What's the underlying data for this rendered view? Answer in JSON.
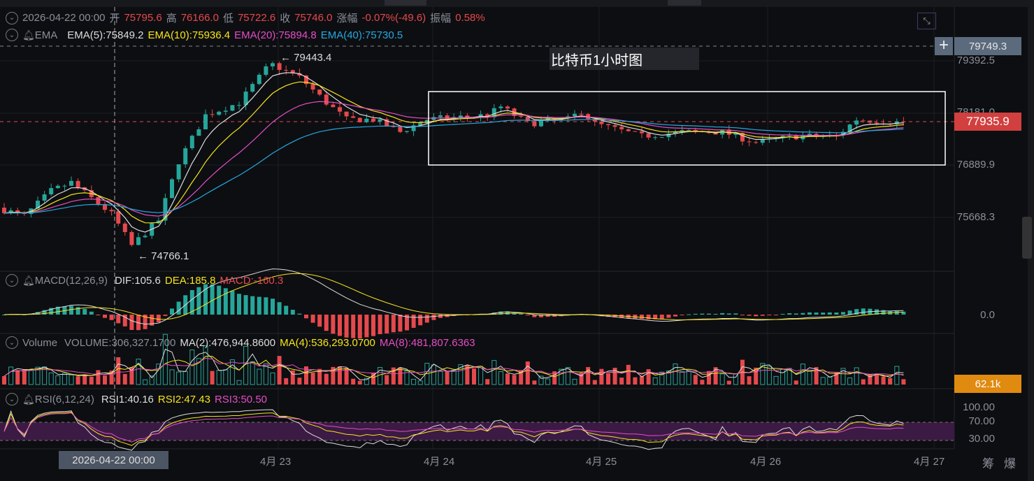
{
  "header": {
    "datetime": "2026-04-22 00:00",
    "open_label": "开",
    "open": "75795.6",
    "high_label": "高",
    "high": "76166.0",
    "low_label": "低",
    "low": "75722.6",
    "close_label": "收",
    "close": "75746.0",
    "change_label": "涨幅",
    "change": "-0.07%(-49.6)",
    "amp_label": "振幅",
    "amp": "0.58%"
  },
  "ema": {
    "label": "EMA",
    "e5": "EMA(5):75849.2",
    "e10": "EMA(10):75936.4",
    "e20": "EMA(20):75894.8",
    "e40": "EMA(40):75730.5"
  },
  "macd": {
    "label": "MACD(12,26,9)",
    "dif": "DIF:105.6",
    "dea": "DEA:185.8",
    "macd": "MACD:-160.3",
    "zero": "0.0"
  },
  "volume": {
    "label": "Volume",
    "vol": "VOLUME:306,327.1700",
    "ma2": "MA(2):476,944.8600",
    "ma4": "MA(4):536,293.0700",
    "ma8": "MA(8):481,807.6363",
    "tag": "62.1k"
  },
  "rsi": {
    "label": "RSI(6,12,24)",
    "r1": "RSI1:40.16",
    "r2": "RSI2:47.43",
    "r3": "RSI3:50.50",
    "levels": [
      "100.00",
      "70.00",
      "30.00"
    ]
  },
  "chart_title": "比特币1小时图",
  "price_axis": [
    "79392.5",
    "78181.0",
    "76889.9",
    "75668.3"
  ],
  "crosshair_price": "79749.3",
  "last_price": "77935.9",
  "high_marker": "← 79443.4",
  "low_marker": "← 74766.1",
  "x_axis": {
    "crosshair": "2026-04-22 00:00",
    "dates": [
      "4月 23",
      "4月 24",
      "4月 25",
      "4月 26",
      "4月 27"
    ]
  },
  "footer_buttons": [
    "筹",
    "爆"
  ],
  "colors": {
    "up": "#26a69a",
    "down": "#e5494d",
    "ema5": "#dddddd",
    "ema10": "#f5e51b",
    "ema20": "#e34ec6",
    "ema40": "#26a8e0"
  },
  "chart_data": {
    "type": "candlestick",
    "interval": "1h",
    "price_path": [
      [
        0,
        75900
      ],
      [
        4,
        75700
      ],
      [
        8,
        76300
      ],
      [
        11,
        76500
      ],
      [
        17,
        75750
      ],
      [
        20,
        75000
      ],
      [
        24,
        75600
      ],
      [
        27,
        77000
      ],
      [
        31,
        78100
      ],
      [
        36,
        78400
      ],
      [
        40,
        79200
      ],
      [
        41,
        79300
      ],
      [
        45,
        79000
      ],
      [
        49,
        78400
      ],
      [
        52,
        78000
      ],
      [
        56,
        78000
      ],
      [
        60,
        77700
      ],
      [
        64,
        78000
      ],
      [
        73,
        78100
      ],
      [
        75,
        78300
      ],
      [
        79,
        77900
      ],
      [
        85,
        78000
      ],
      [
        87,
        78200
      ],
      [
        89,
        77900
      ],
      [
        96,
        77600
      ],
      [
        102,
        77700
      ],
      [
        108,
        77700
      ],
      [
        113,
        77450
      ],
      [
        119,
        77600
      ],
      [
        125,
        77600
      ],
      [
        128,
        78000
      ],
      [
        134,
        77935
      ]
    ]
  }
}
